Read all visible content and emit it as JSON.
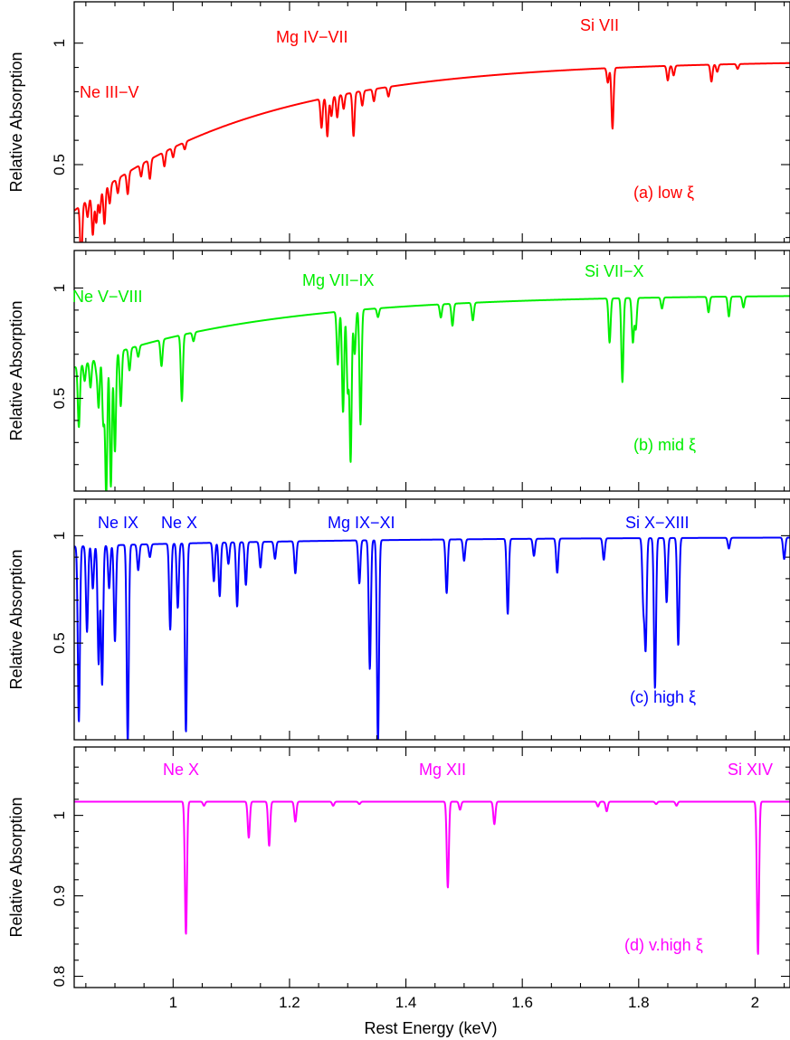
{
  "chart_data": [
    {
      "type": "line",
      "color": "#ff0000",
      "ylabel": "Relative Absorption",
      "xlim": [
        0.83,
        2.06
      ],
      "ylim": [
        0.18,
        1.17
      ],
      "yticks_labeled": [
        0.5,
        1
      ],
      "panel_label": "(a) low ξ",
      "annotations": [
        {
          "text": "Ne III−V",
          "x": 0.93,
          "y": 0.63
        },
        {
          "text": "Mg IV−VII",
          "x": 1.28,
          "y": 1.08
        },
        {
          "text": "Si VII",
          "x": 1.76,
          "y": 1.12
        }
      ],
      "continuum": {
        "start": 0.31,
        "end": 0.93,
        "rate": 3.2
      },
      "lines": [
        [
          0.842,
          0.24
        ],
        [
          0.853,
          0.07
        ],
        [
          0.862,
          0.16
        ],
        [
          0.868,
          0.12
        ],
        [
          0.874,
          0.09
        ],
        [
          0.882,
          0.15
        ],
        [
          0.891,
          0.08
        ],
        [
          0.905,
          0.06
        ],
        [
          0.922,
          0.09
        ],
        [
          0.945,
          0.05
        ],
        [
          0.96,
          0.08
        ],
        [
          0.985,
          0.06
        ],
        [
          1.0,
          0.04
        ],
        [
          1.02,
          0.03
        ],
        [
          1.255,
          0.12
        ],
        [
          1.265,
          0.16
        ],
        [
          1.272,
          0.08
        ],
        [
          1.282,
          0.09
        ],
        [
          1.293,
          0.06
        ],
        [
          1.31,
          0.18
        ],
        [
          1.325,
          0.06
        ],
        [
          1.345,
          0.05
        ],
        [
          1.37,
          0.04
        ],
        [
          1.755,
          0.25
        ],
        [
          1.747,
          0.06
        ],
        [
          1.85,
          0.06
        ],
        [
          1.86,
          0.04
        ],
        [
          1.925,
          0.07
        ],
        [
          1.935,
          0.03
        ],
        [
          1.97,
          0.02
        ]
      ]
    },
    {
      "type": "line",
      "color": "#00ee00",
      "ylabel": "Relative Absorption",
      "xlim": [
        0.83,
        2.06
      ],
      "ylim": [
        0.08,
        1.17
      ],
      "yticks_labeled": [
        0.5,
        1
      ],
      "panel_label": "(b) mid ξ",
      "annotations": [
        {
          "text": "Ne V−VIII",
          "x": 0.9,
          "y": 0.98
        },
        {
          "text": "Mg VII−IX",
          "x": 1.34,
          "y": 1.02
        },
        {
          "text": "Si VII−X",
          "x": 1.8,
          "y": 1.03
        }
      ],
      "continuum": {
        "start": 0.64,
        "end": 0.97,
        "rate": 3.2
      },
      "lines": [
        [
          0.838,
          0.28
        ],
        [
          0.848,
          0.08
        ],
        [
          0.858,
          0.12
        ],
        [
          0.868,
          0.05
        ],
        [
          0.872,
          0.22
        ],
        [
          0.88,
          0.3
        ],
        [
          0.885,
          0.63
        ],
        [
          0.893,
          0.6
        ],
        [
          0.9,
          0.45
        ],
        [
          0.91,
          0.25
        ],
        [
          0.925,
          0.1
        ],
        [
          0.94,
          0.05
        ],
        [
          0.98,
          0.12
        ],
        [
          1.015,
          0.3
        ],
        [
          1.035,
          0.04
        ],
        [
          1.283,
          0.24
        ],
        [
          1.292,
          0.46
        ],
        [
          1.3,
          0.36
        ],
        [
          1.305,
          0.68
        ],
        [
          1.312,
          0.2
        ],
        [
          1.322,
          0.52
        ],
        [
          1.352,
          0.04
        ],
        [
          1.46,
          0.06
        ],
        [
          1.48,
          0.1
        ],
        [
          1.515,
          0.08
        ],
        [
          1.75,
          0.2
        ],
        [
          1.772,
          0.38
        ],
        [
          1.79,
          0.2
        ],
        [
          1.795,
          0.14
        ],
        [
          1.84,
          0.05
        ],
        [
          1.92,
          0.07
        ],
        [
          1.955,
          0.09
        ],
        [
          1.98,
          0.05
        ]
      ]
    },
    {
      "type": "line",
      "color": "#0000ff",
      "ylabel": "Relative Absorption",
      "xlim": [
        0.83,
        2.06
      ],
      "ylim": [
        0.05,
        1.17
      ],
      "yticks_labeled": [
        0.5,
        1
      ],
      "panel_label": "(c) high ξ",
      "annotations": [
        {
          "text": "Ne IX",
          "x": 0.91,
          "y": 1.07
        },
        {
          "text": "Ne X",
          "x": 1.02,
          "y": 1.07
        },
        {
          "text": "Mg IX−XI",
          "x": 1.35,
          "y": 1.07
        },
        {
          "text": "Si X−XIII",
          "x": 1.83,
          "y": 1.07
        }
      ],
      "continuum": {
        "start": 0.95,
        "end": 0.995,
        "rate": 2.0
      },
      "lines": [
        [
          0.838,
          0.82
        ],
        [
          0.852,
          0.4
        ],
        [
          0.862,
          0.2
        ],
        [
          0.872,
          0.55
        ],
        [
          0.878,
          0.65
        ],
        [
          0.89,
          0.2
        ],
        [
          0.9,
          0.45
        ],
        [
          0.922,
          0.92
        ],
        [
          0.94,
          0.12
        ],
        [
          0.96,
          0.06
        ],
        [
          0.995,
          0.4
        ],
        [
          1.008,
          0.3
        ],
        [
          1.022,
          0.88
        ],
        [
          1.07,
          0.18
        ],
        [
          1.08,
          0.25
        ],
        [
          1.095,
          0.1
        ],
        [
          1.11,
          0.3
        ],
        [
          1.125,
          0.2
        ],
        [
          1.15,
          0.12
        ],
        [
          1.175,
          0.08
        ],
        [
          1.21,
          0.15
        ],
        [
          1.32,
          0.2
        ],
        [
          1.338,
          0.6
        ],
        [
          1.352,
          0.95
        ],
        [
          1.47,
          0.25
        ],
        [
          1.5,
          0.1
        ],
        [
          1.575,
          0.35
        ],
        [
          1.62,
          0.08
        ],
        [
          1.66,
          0.16
        ],
        [
          1.74,
          0.1
        ],
        [
          1.808,
          0.3
        ],
        [
          1.812,
          0.5
        ],
        [
          1.828,
          0.7
        ],
        [
          1.848,
          0.3
        ],
        [
          1.868,
          0.5
        ],
        [
          1.955,
          0.05
        ],
        [
          2.05,
          0.1
        ]
      ]
    },
    {
      "type": "line",
      "color": "#ff00ff",
      "ylabel": "Relative Absorption",
      "xlim": [
        0.83,
        2.06
      ],
      "ylim": [
        0.786,
        1.085
      ],
      "yticks_labeled": [
        0.8,
        0.9,
        1
      ],
      "panel_label": "(d) v.high ξ",
      "annotations": [
        {
          "text": "Ne X",
          "x": 1.02,
          "y": 1.058
        },
        {
          "text": "Mg XII",
          "x": 1.47,
          "y": 1.058
        },
        {
          "text": "Si XIV",
          "x": 2.02,
          "y": 1.058
        }
      ],
      "continuum": {
        "start": 1.017,
        "end": 1.017,
        "rate": 1.0
      },
      "lines": [
        [
          1.022,
          0.165
        ],
        [
          1.053,
          0.005
        ],
        [
          1.13,
          0.045
        ],
        [
          1.165,
          0.055
        ],
        [
          1.21,
          0.025
        ],
        [
          1.275,
          0.005
        ],
        [
          1.32,
          0.003
        ],
        [
          1.472,
          0.107
        ],
        [
          1.493,
          0.01
        ],
        [
          1.552,
          0.028
        ],
        [
          1.73,
          0.006
        ],
        [
          1.745,
          0.012
        ],
        [
          1.83,
          0.003
        ],
        [
          1.865,
          0.005
        ],
        [
          2.005,
          0.19
        ]
      ]
    }
  ],
  "axis": {
    "xlabel": "Rest Energy (keV)",
    "xtick_labels": [
      1,
      1.2,
      1.4,
      1.6,
      1.8,
      2
    ]
  }
}
